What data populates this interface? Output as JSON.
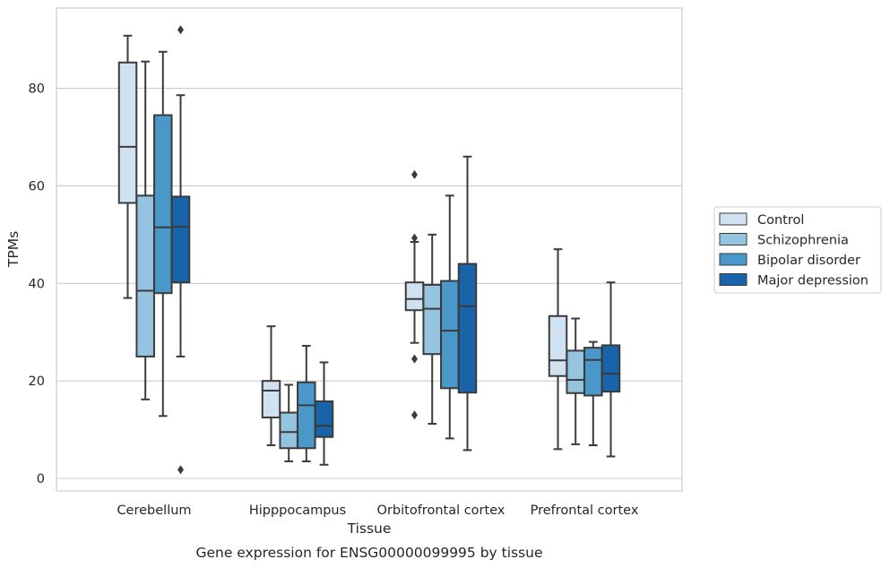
{
  "chart_data": {
    "type": "box",
    "caption": "Gene expression for ENSG00000099995 by tissue",
    "xlabel": "Tissue",
    "ylabel": "TPMs",
    "ylim": [
      -2.5,
      96.5
    ],
    "yticks": [
      0,
      20,
      40,
      60,
      80
    ],
    "grid": "horizontal",
    "legend_position": "right",
    "categories": [
      "Cerebellum",
      "Hipppocampus",
      "Orbitofrontal cortex",
      "Prefrontal cortex"
    ],
    "series": [
      {
        "name": "Control",
        "color": "#d0e1f2",
        "boxes": [
          {
            "whislo": 37,
            "q1": 56.5,
            "med": 68,
            "q3": 85.3,
            "whishi": 90.8,
            "fliers": []
          },
          {
            "whislo": 6.8,
            "q1": 12.5,
            "med": 18,
            "q3": 20,
            "whishi": 31.2,
            "fliers": []
          },
          {
            "whislo": 27.8,
            "q1": 34.5,
            "med": 36.8,
            "q3": 40.2,
            "whishi": 48.5,
            "fliers": [
              49.3,
              62.3,
              24.5,
              13
            ]
          },
          {
            "whislo": 6,
            "q1": 21,
            "med": 24.2,
            "q3": 33.3,
            "whishi": 47,
            "fliers": []
          }
        ]
      },
      {
        "name": "Schizophrenia",
        "color": "#94c4df",
        "boxes": [
          {
            "whislo": 16.2,
            "q1": 25,
            "med": 38.5,
            "q3": 58,
            "whishi": 85.5,
            "fliers": []
          },
          {
            "whislo": 3.5,
            "q1": 6.2,
            "med": 9.5,
            "q3": 13.5,
            "whishi": 19.2,
            "fliers": []
          },
          {
            "whislo": 11.2,
            "q1": 25.5,
            "med": 34.8,
            "q3": 39.7,
            "whishi": 50,
            "fliers": []
          },
          {
            "whislo": 7,
            "q1": 17.5,
            "med": 20.2,
            "q3": 26.2,
            "whishi": 32.8,
            "fliers": []
          }
        ]
      },
      {
        "name": "Bipolar disorder",
        "color": "#4a98c9",
        "boxes": [
          {
            "whislo": 12.8,
            "q1": 38,
            "med": 51.5,
            "q3": 74.5,
            "whishi": 87.5,
            "fliers": []
          },
          {
            "whislo": 3.5,
            "q1": 6.2,
            "med": 15,
            "q3": 19.7,
            "whishi": 27.2,
            "fliers": []
          },
          {
            "whislo": 8.2,
            "q1": 18.5,
            "med": 30.3,
            "q3": 40.5,
            "whishi": 58,
            "fliers": []
          },
          {
            "whislo": 6.8,
            "q1": 17,
            "med": 24.3,
            "q3": 26.8,
            "whishi": 28,
            "fliers": []
          }
        ]
      },
      {
        "name": "Major depression",
        "color": "#1764ab",
        "boxes": [
          {
            "whislo": 25,
            "q1": 40.2,
            "med": 51.6,
            "q3": 57.8,
            "whishi": 78.6,
            "fliers": [
              92,
              1.8
            ]
          },
          {
            "whislo": 2.8,
            "q1": 8.5,
            "med": 10.8,
            "q3": 15.8,
            "whishi": 23.8,
            "fliers": []
          },
          {
            "whislo": 5.8,
            "q1": 17.6,
            "med": 35.3,
            "q3": 44,
            "whishi": 66,
            "fliers": []
          },
          {
            "whislo": 4.5,
            "q1": 17.8,
            "med": 21.5,
            "q3": 27.3,
            "whishi": 40.2,
            "fliers": []
          }
        ]
      }
    ]
  }
}
